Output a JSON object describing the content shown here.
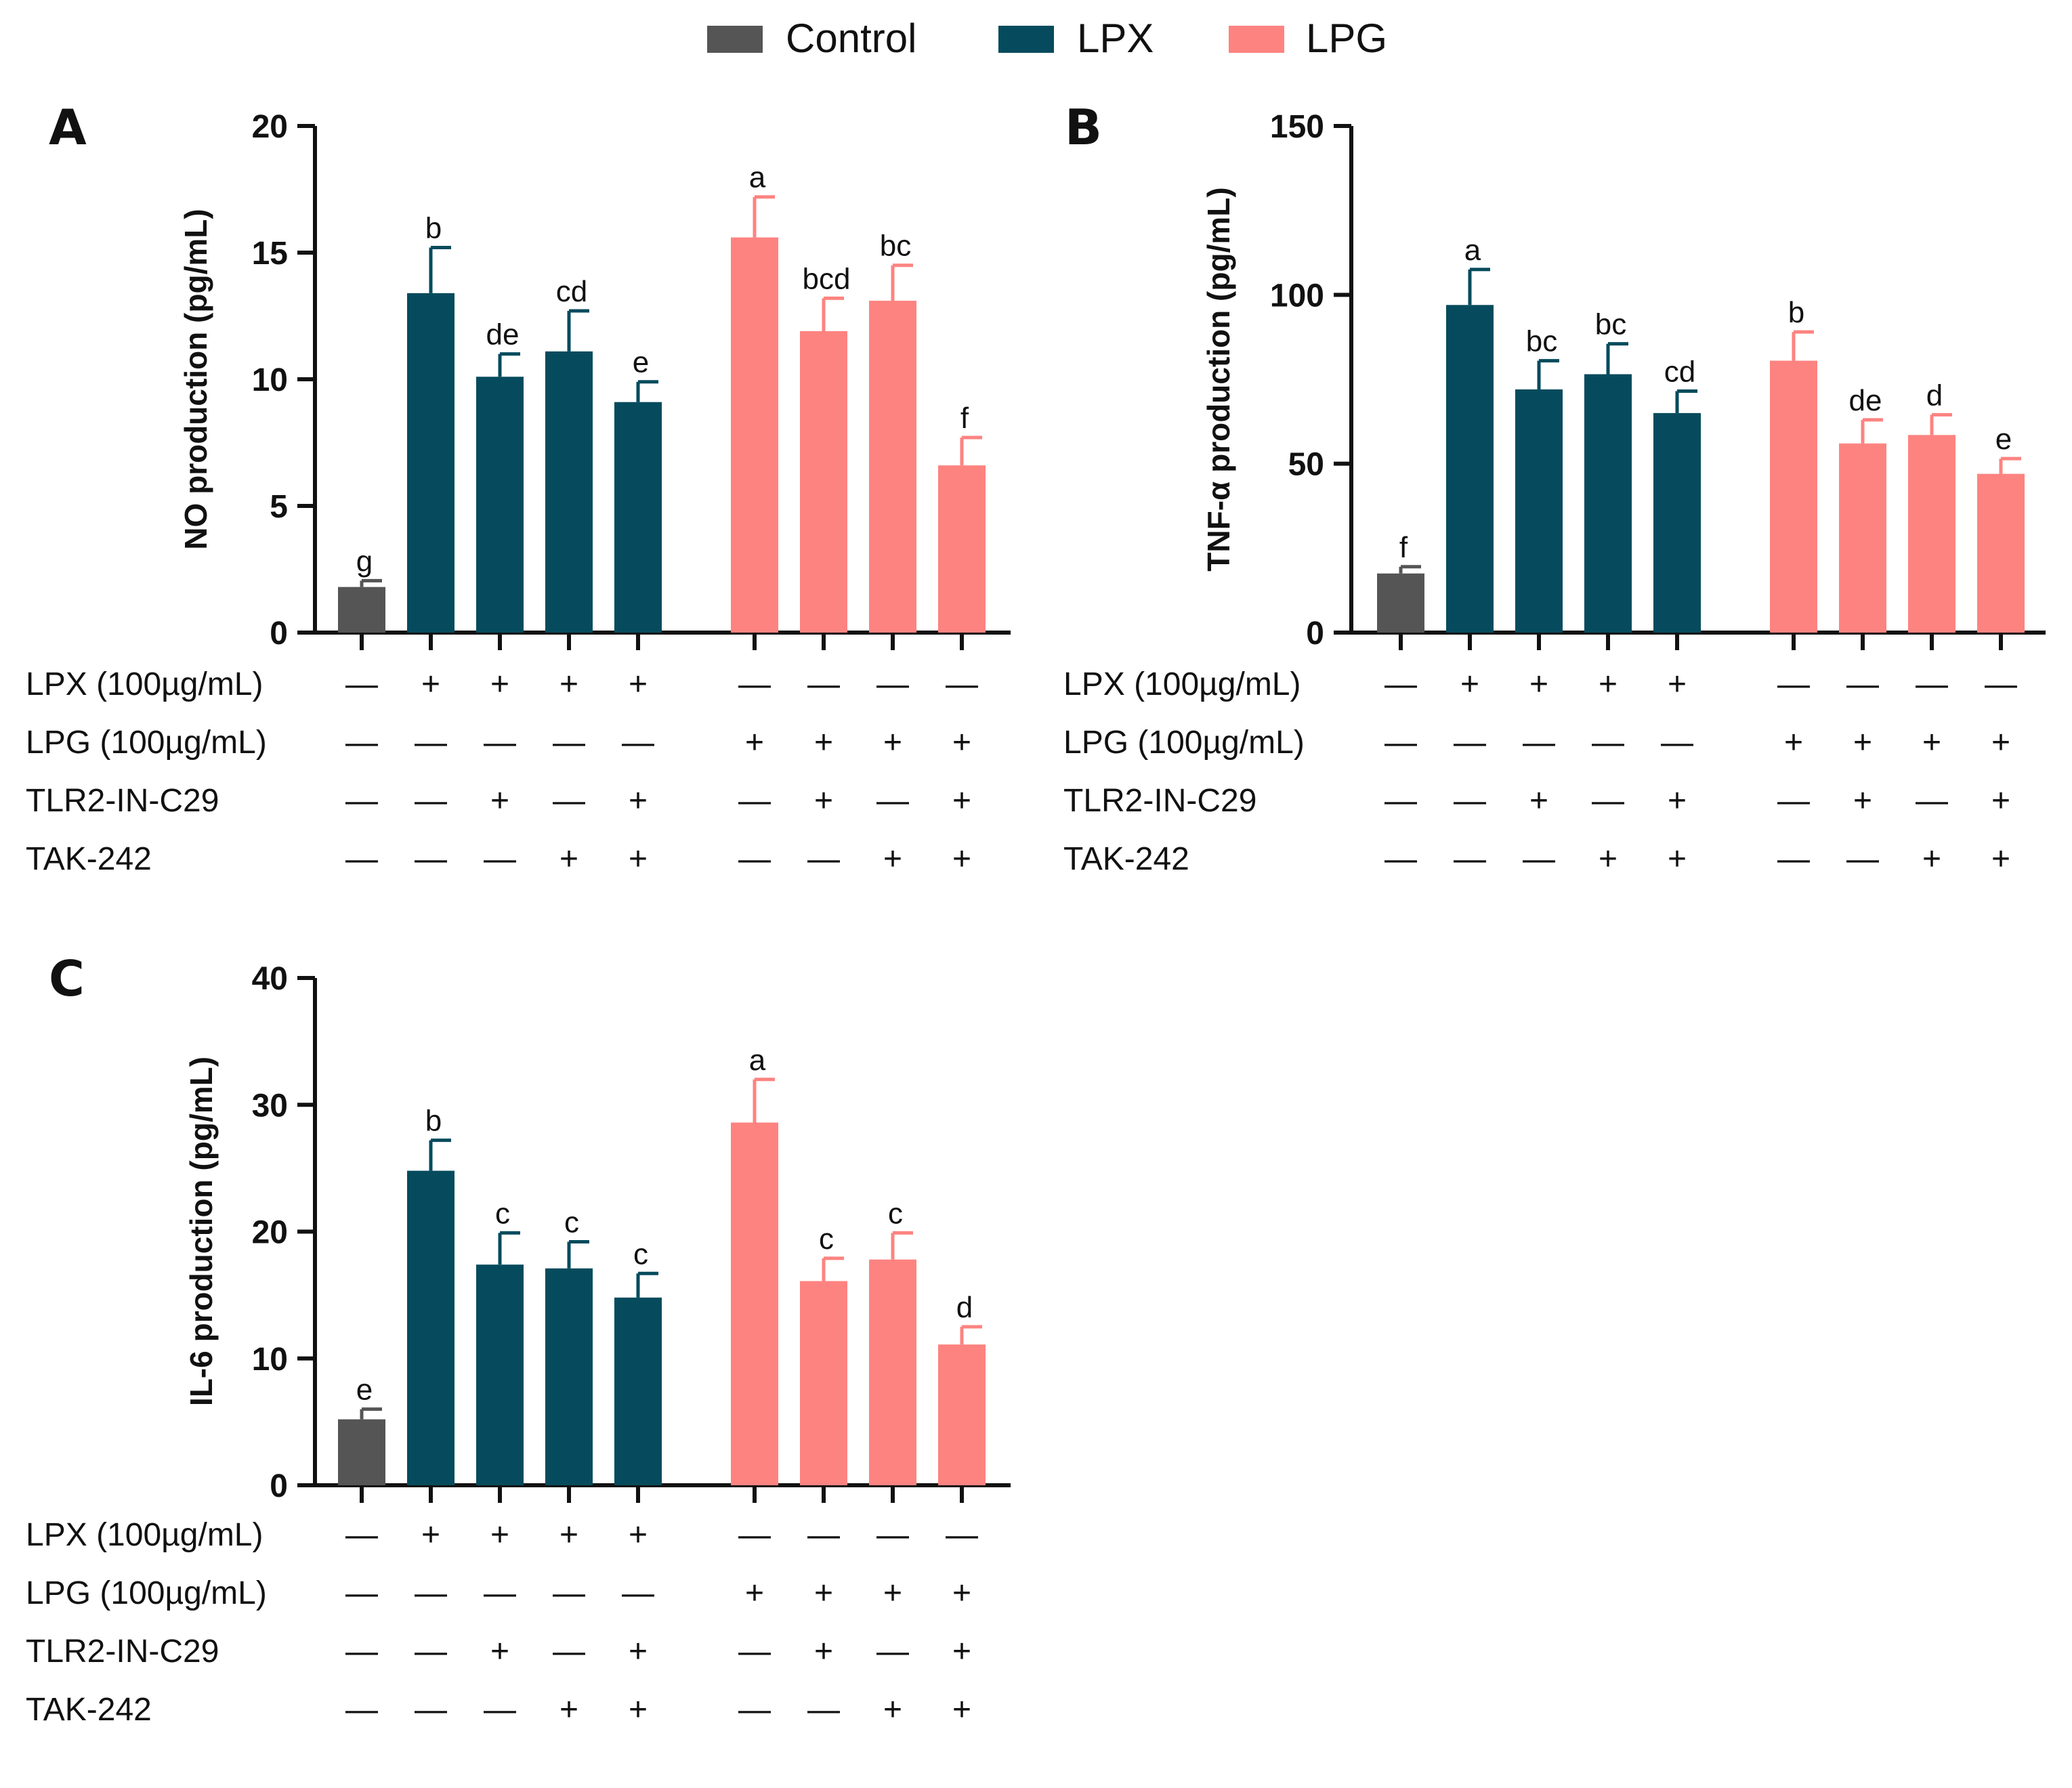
{
  "legend": [
    {
      "label": "Control",
      "color": "#555555"
    },
    {
      "label": "LPX",
      "color": "#064b5d"
    },
    {
      "label": "LPG",
      "color": "#fd8380"
    }
  ],
  "condition_rows": {
    "labels": [
      "LPX (100µg/mL)",
      "LPG (100µg/mL)",
      "TLR2-IN-C29",
      "TAK-242"
    ],
    "signs": [
      [
        "—",
        "+",
        "+",
        "+",
        "+",
        "—",
        "—",
        "—",
        "—"
      ],
      [
        "—",
        "—",
        "—",
        "—",
        "—",
        "+",
        "+",
        "+",
        "+"
      ],
      [
        "—",
        "—",
        "+",
        "—",
        "+",
        "—",
        "+",
        "—",
        "+"
      ],
      [
        "—",
        "—",
        "—",
        "+",
        "+",
        "—",
        "—",
        "+",
        "+"
      ]
    ]
  },
  "chart_data": [
    {
      "type": "bar",
      "panel": "A",
      "ylabel": "NO production (pg/mL)",
      "ylim": [
        0,
        20
      ],
      "yticks": [
        0,
        5,
        10,
        15,
        20
      ],
      "group": [
        "Control",
        "LPX",
        "LPX",
        "LPX",
        "LPX",
        "LPG",
        "LPG",
        "LPG",
        "LPG"
      ],
      "values": [
        1.8,
        13.4,
        10.1,
        11.1,
        9.1,
        15.6,
        11.9,
        13.1,
        6.6
      ],
      "errors": [
        0.25,
        1.8,
        0.9,
        1.6,
        0.8,
        1.6,
        1.3,
        1.4,
        1.1
      ],
      "significance": [
        "g",
        "b",
        "de",
        "cd",
        "e",
        "a",
        "bcd",
        "bc",
        "f"
      ]
    },
    {
      "type": "bar",
      "panel": "B",
      "ylabel": "TNF-α production (pg/mL)",
      "ylim": [
        0,
        150
      ],
      "yticks": [
        0,
        50,
        100,
        150
      ],
      "group": [
        "Control",
        "LPX",
        "LPX",
        "LPX",
        "LPX",
        "LPG",
        "LPG",
        "LPG",
        "LPG"
      ],
      "values": [
        17.5,
        97,
        72,
        76.5,
        65,
        80.5,
        56,
        58.5,
        47
      ],
      "errors": [
        2,
        10.5,
        8.5,
        9,
        6.5,
        8.5,
        7,
        6,
        4.5
      ],
      "significance": [
        "f",
        "a",
        "bc",
        "bc",
        "cd",
        "b",
        "de",
        "d",
        "e"
      ]
    },
    {
      "type": "bar",
      "panel": "C",
      "ylabel": "IL-6 production (pg/mL)",
      "ylim": [
        0,
        40
      ],
      "yticks": [
        0,
        10,
        20,
        30,
        40
      ],
      "group": [
        "Control",
        "LPX",
        "LPX",
        "LPX",
        "LPX",
        "LPG",
        "LPG",
        "LPG",
        "LPG"
      ],
      "values": [
        5.2,
        24.8,
        17.4,
        17.1,
        14.8,
        28.6,
        16.1,
        17.8,
        11.1
      ],
      "errors": [
        0.8,
        2.4,
        2.5,
        2.1,
        1.9,
        3.4,
        1.8,
        2.1,
        1.4
      ],
      "significance": [
        "e",
        "b",
        "c",
        "c",
        "c",
        "a",
        "c",
        "c",
        "d"
      ]
    }
  ]
}
